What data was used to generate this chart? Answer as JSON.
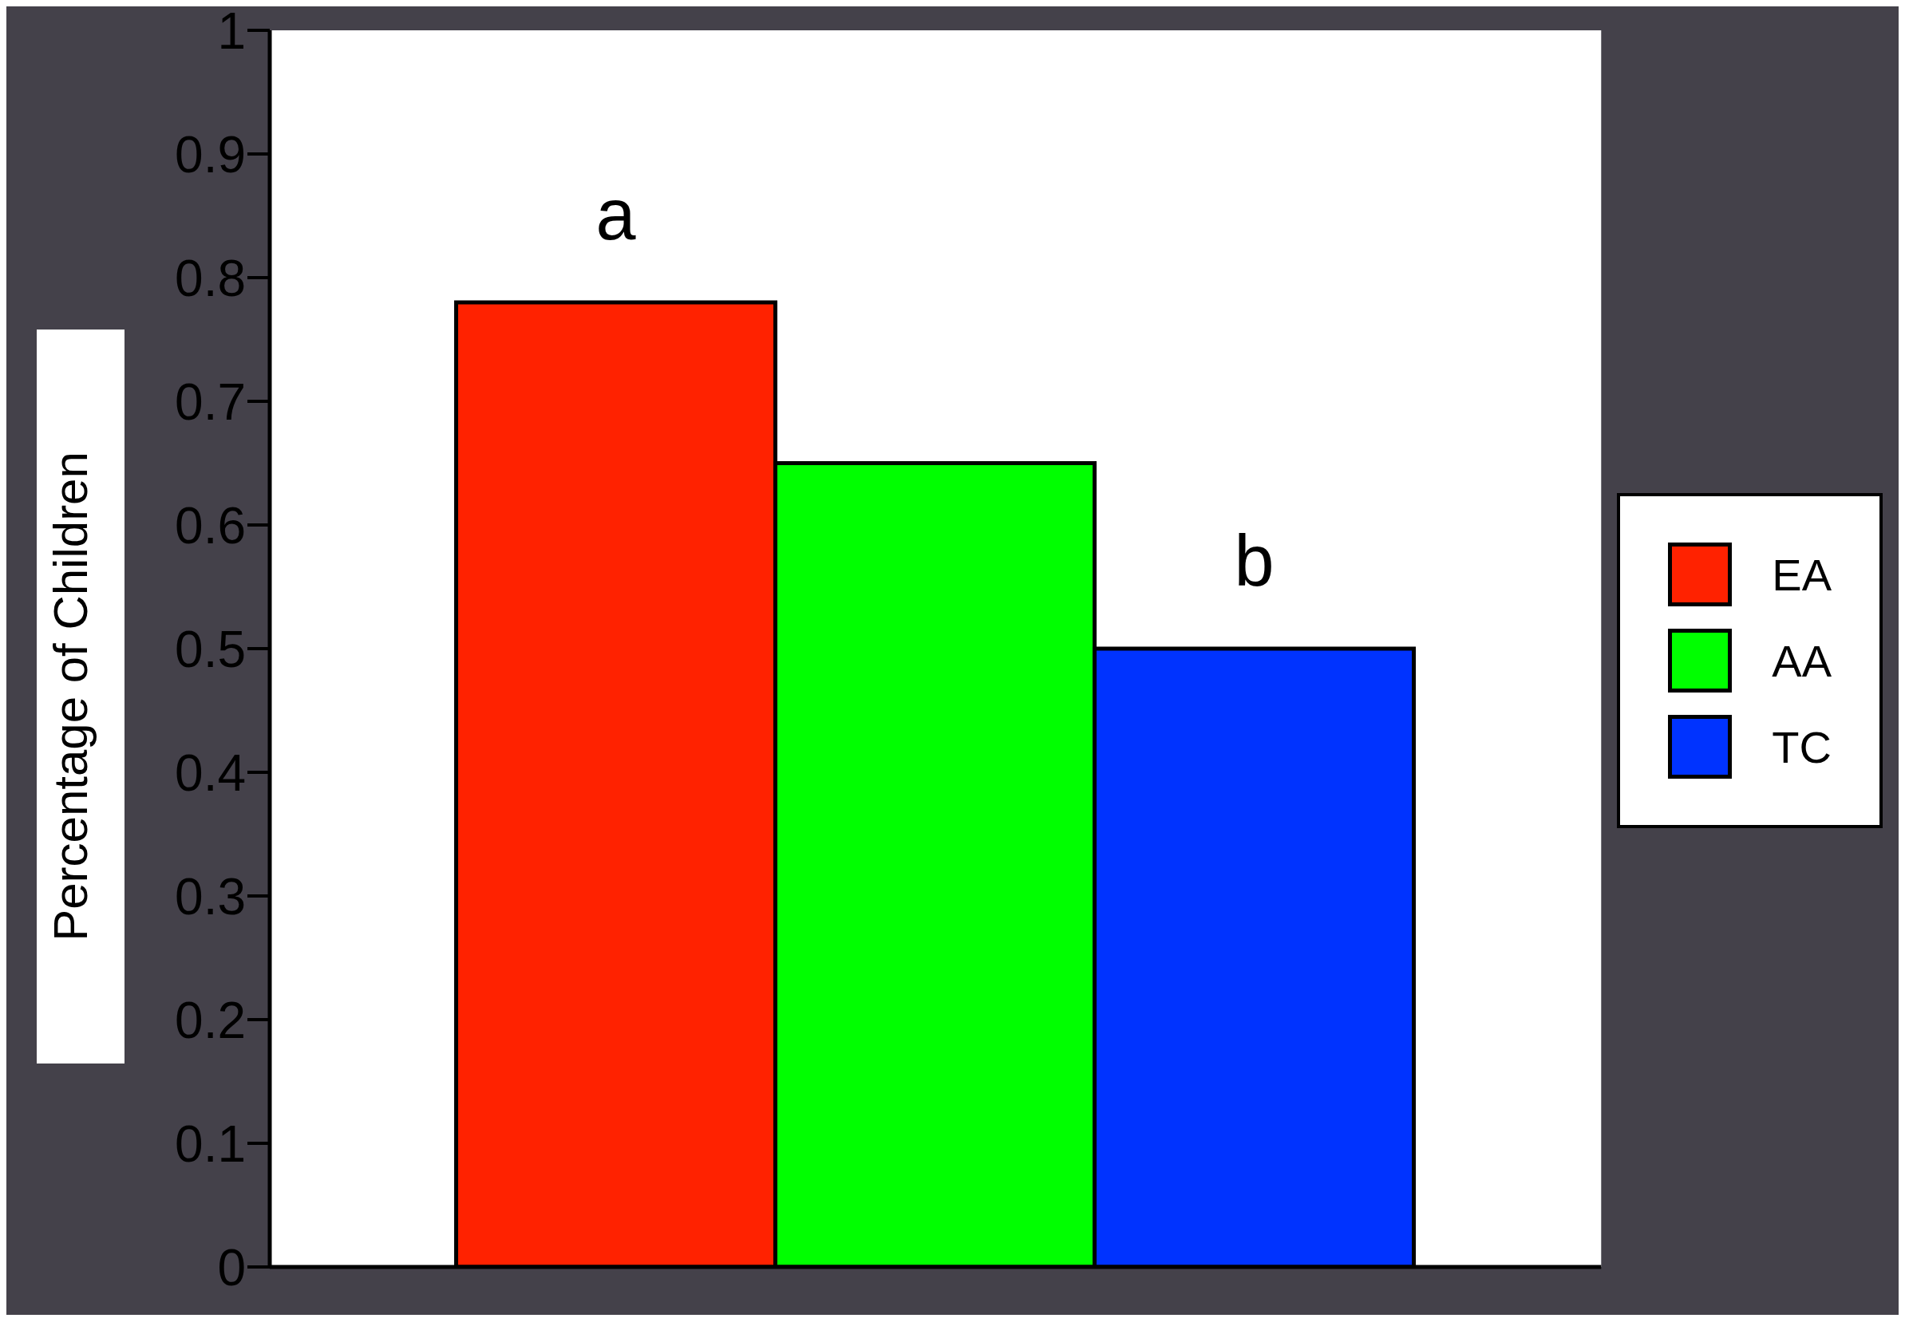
{
  "chart_data": {
    "type": "bar",
    "ylabel": "Percentage of Children",
    "categories": [
      null
    ],
    "series": [
      {
        "name": "EA",
        "color": "#ff2200",
        "values": [
          0.78
        ]
      },
      {
        "name": "AA",
        "color": "#00ff00",
        "values": [
          0.65
        ]
      },
      {
        "name": "TC",
        "color": "#0033ff",
        "values": [
          0.5
        ]
      }
    ],
    "ylim": [
      0,
      1
    ],
    "yticks": [
      0,
      0.1,
      0.2,
      0.3,
      0.4,
      0.5,
      0.6,
      0.7,
      0.8,
      0.9,
      1
    ],
    "annotations": [
      "a",
      "b"
    ],
    "legend": "right",
    "grid": false
  }
}
